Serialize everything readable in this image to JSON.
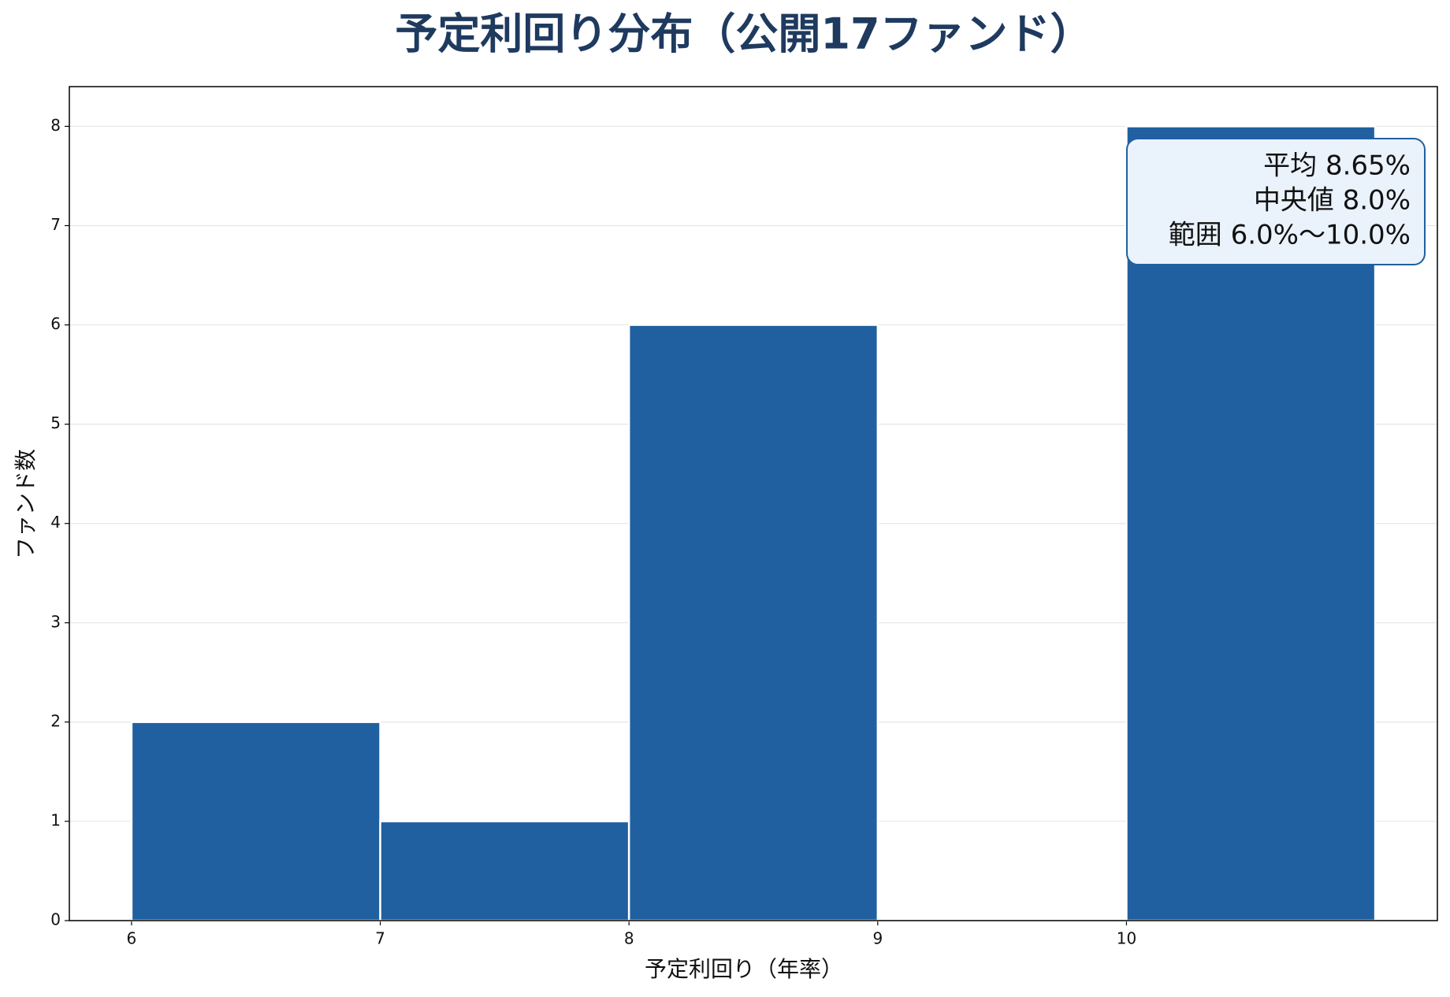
{
  "chart_data": {
    "type": "histogram",
    "title": "予定利回り分布（公開17ファンド）",
    "x_label": "予定利回り（年率）",
    "y_label": "ファンド数",
    "bins": [
      6,
      7,
      8,
      9,
      10,
      11
    ],
    "counts": [
      2,
      1,
      6,
      0,
      8
    ],
    "color": "#2060a0",
    "xlim": [
      5.75,
      11.25
    ],
    "xticks": [
      6,
      7,
      8,
      9,
      10
    ],
    "ylim": [
      0,
      8.4
    ],
    "yticks": [
      0,
      1,
      2,
      3,
      4,
      5,
      6,
      7,
      8
    ],
    "grid": true,
    "annotation": [
      "平均 8.65%",
      "中央値 8.0%",
      "範囲 6.0%〜10.0%"
    ]
  }
}
